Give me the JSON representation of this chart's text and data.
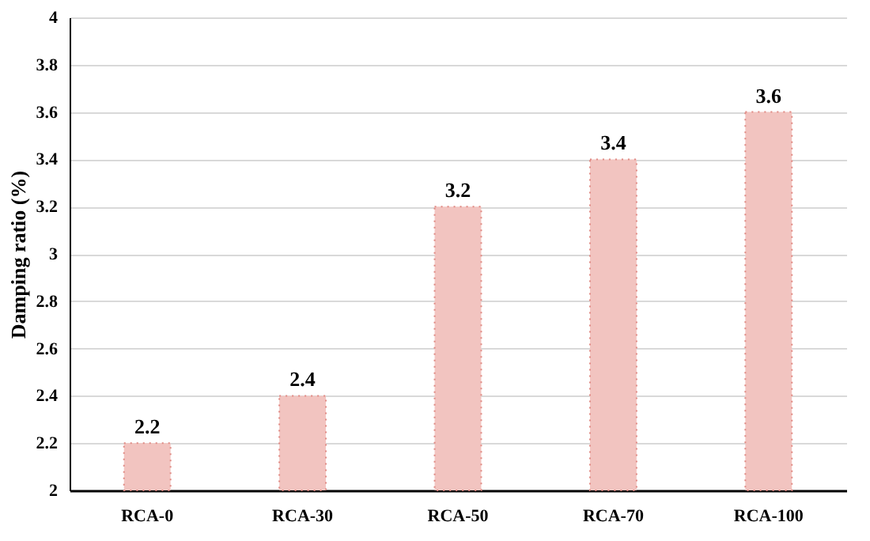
{
  "chart_data": {
    "type": "bar",
    "ylabel": "Damping ratio (%)",
    "categories": [
      "RCA-0",
      "RCA-30",
      "RCA-50",
      "RCA-70",
      "RCA-100"
    ],
    "values": [
      2.2,
      2.4,
      3.2,
      3.4,
      3.6
    ],
    "color": "#f2c4c0",
    "ylim": [
      2,
      4
    ],
    "yticks": [
      2,
      2.2,
      2.4,
      2.6,
      2.8,
      3,
      3.2,
      3.4,
      3.6,
      3.8,
      4
    ],
    "grid": "y",
    "data_labels": true
  }
}
